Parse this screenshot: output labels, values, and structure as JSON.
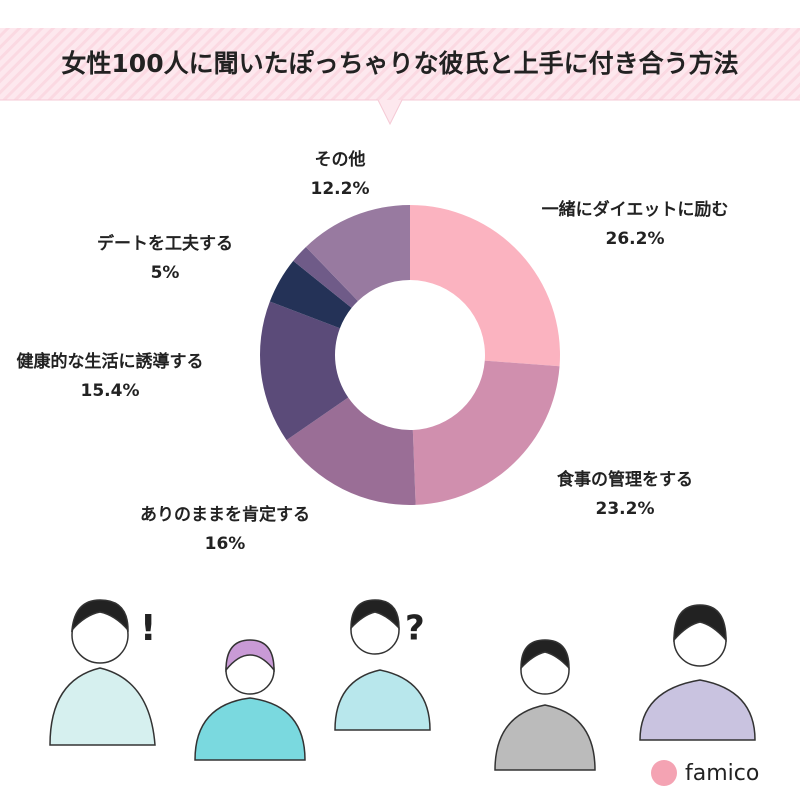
{
  "chart_data": {
    "type": "donut",
    "title": "女性100人に聞いたぽっちゃりな彼氏と上手に付き合う方法",
    "categories": [
      "一緒にダイエットに励む",
      "食事の管理をする",
      "ありのままを肯定する",
      "健康的な生活に誘導する",
      "デートを工夫する",
      null,
      "その他"
    ],
    "values": [
      26.2,
      23.2,
      16,
      15.4,
      5,
      2,
      12.2
    ],
    "value_labels": [
      "26.2%",
      "23.2%",
      "16%",
      "15.4%",
      "5%",
      null,
      "12.2%"
    ],
    "colors": [
      "#fbb3c0",
      "#d08fae",
      "#9a6e96",
      "#5b4b79",
      "#243257",
      "#6f5b88",
      "#987aa0"
    ]
  },
  "logo": "famico"
}
